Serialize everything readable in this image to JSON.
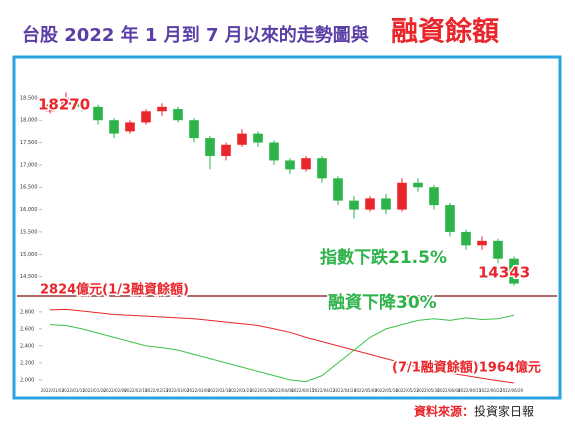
{
  "chart_data": {
    "type": "candlestick",
    "title": "台股 2022 年 1 月到 7 月以來的走勢圖與",
    "title_emphasis": "融資餘額",
    "source_label": "資料來源：",
    "source": "投資家日報",
    "up_color": "#e8262b",
    "down_color": "#2db34a",
    "open": [
      18200,
      18350,
      18450,
      18300,
      18000,
      17750,
      17950,
      18200,
      18250,
      18000,
      17600,
      17200,
      17450,
      17700,
      17500,
      17100,
      16900,
      17150,
      16700,
      16200,
      16000,
      16250,
      16000,
      16600,
      16500,
      16100,
      15500,
      15200,
      15300,
      14900
    ],
    "close": [
      18350,
      18500,
      18300,
      18000,
      17700,
      17950,
      18200,
      18300,
      18000,
      17600,
      17200,
      17450,
      17700,
      17500,
      17100,
      16900,
      17150,
      16700,
      16200,
      16000,
      16250,
      16000,
      16600,
      16500,
      16100,
      15500,
      15200,
      15300,
      14900,
      14343
    ],
    "high": [
      18400,
      18620,
      18500,
      18350,
      18050,
      18000,
      18250,
      18380,
      18300,
      18050,
      17650,
      17500,
      17800,
      17750,
      17550,
      17150,
      17200,
      17200,
      16750,
      16300,
      16300,
      16350,
      16700,
      16700,
      16550,
      16150,
      15550,
      15400,
      15350,
      14950
    ],
    "low": [
      18150,
      18300,
      18200,
      17900,
      17600,
      17700,
      17900,
      18100,
      17950,
      17500,
      16900,
      17100,
      17400,
      17400,
      17000,
      16800,
      16850,
      16600,
      16100,
      15800,
      15950,
      15900,
      15950,
      16400,
      16000,
      15400,
      15100,
      15100,
      14800,
      14300
    ],
    "ylim": [
      14200,
      18900
    ],
    "yticks": [
      {
        "value": 14500,
        "label": "14,500"
      },
      {
        "value": 15000,
        "label": "15,000"
      },
      {
        "value": 15500,
        "label": "15,500"
      },
      {
        "value": 16000,
        "label": "16,000"
      },
      {
        "value": 16500,
        "label": "16,500"
      },
      {
        "value": 17000,
        "label": "17,000"
      },
      {
        "value": 17500,
        "label": "17,500"
      },
      {
        "value": 18000,
        "label": "18,000"
      },
      {
        "value": 18500,
        "label": "18,500"
      }
    ],
    "y2lim": [
      1940,
      2940
    ],
    "y2ticks": [
      {
        "value": 2000,
        "label": "2,000"
      },
      {
        "value": 2200,
        "label": "2,200"
      },
      {
        "value": 2400,
        "label": "2,400"
      },
      {
        "value": 2600,
        "label": "2,600"
      },
      {
        "value": 2800,
        "label": "2,800"
      }
    ],
    "series": [
      {
        "color": "#e8262b",
        "axis": "y2",
        "values": [
          2824,
          2830,
          2810,
          2790,
          2770,
          2760,
          2750,
          2740,
          2730,
          2720,
          2700,
          2680,
          2660,
          2640,
          2600,
          2560,
          2500,
          2450,
          2400,
          2350,
          2300,
          2250,
          2200,
          2150,
          2100,
          2080,
          2050,
          2020,
          1990,
          1964
        ]
      },
      {
        "color": "#3cc24a",
        "axis": "y2",
        "values": [
          2650,
          2640,
          2600,
          2550,
          2500,
          2450,
          2400,
          2380,
          2350,
          2300,
          2250,
          2200,
          2150,
          2100,
          2050,
          2000,
          1980,
          2050,
          2200,
          2350,
          2500,
          2600,
          2650,
          2700,
          2720,
          2700,
          2730,
          2710,
          2720,
          2760
        ]
      }
    ],
    "x_labels": [
      "2022/01/03",
      "2022/01/11",
      "2022/01/20",
      "2022/02/09",
      "2022/02/16",
      "2022/02/23",
      "2022/03/02",
      "2022/03/09",
      "2022/03/16",
      "2022/03/23",
      "2022/03/30",
      "2022/04/08",
      "2022/04/15",
      "2022/04/22",
      "2022/04/29",
      "2022/05/09",
      "2022/05/16",
      "2022/05/23",
      "2022/05/30",
      "2022/06/08",
      "2022/06/15",
      "2022/06/22",
      "2022/06/29"
    ],
    "annotations": [
      "18270",
      "指數下跌21.5%",
      "14343",
      "2824億元(1/3融資餘額)",
      "融資下降30%",
      "(7/1融資餘額)1964億元"
    ]
  }
}
